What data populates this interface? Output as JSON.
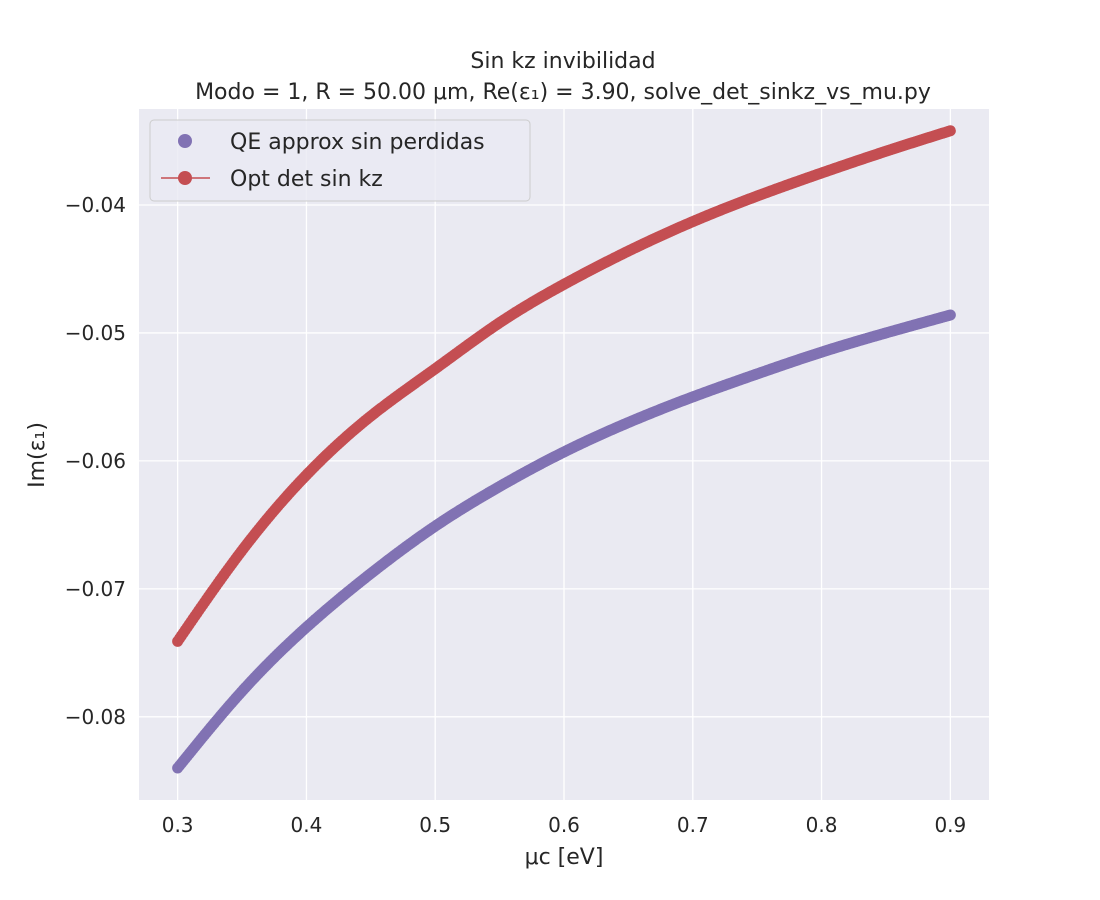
{
  "chart_data": {
    "type": "scatter",
    "title": "Sin kz invibilidad",
    "subtitle": "Modo = 1, R = 50.00 μm, Re(ε₁) = 3.90, solve_det_sinkz_vs_mu.py",
    "xlabel": "μc [eV]",
    "ylabel": "Im(ε₁)",
    "xlim": [
      0.27,
      0.93
    ],
    "ylim": [
      -0.0865,
      -0.0325
    ],
    "x_ticks": [
      0.3,
      0.4,
      0.5,
      0.6,
      0.7,
      0.8,
      0.9
    ],
    "x_tick_labels": [
      "0.3",
      "0.4",
      "0.5",
      "0.6",
      "0.7",
      "0.8",
      "0.9"
    ],
    "y_ticks": [
      -0.04,
      -0.05,
      -0.06,
      -0.07,
      -0.08
    ],
    "y_tick_labels": [
      "−0.04",
      "−0.05",
      "−0.06",
      "−0.07",
      "−0.08"
    ],
    "grid": true,
    "legend_position": "top-left",
    "series": [
      {
        "name": "QE approx sin perdidas",
        "color": "#8172b3",
        "marker": "circle",
        "line": false,
        "x": [
          0.3,
          0.35,
          0.4,
          0.45,
          0.5,
          0.55,
          0.6,
          0.65,
          0.7,
          0.75,
          0.8,
          0.85,
          0.9
        ],
        "y": [
          -0.084,
          -0.078,
          -0.073,
          -0.0688,
          -0.0651,
          -0.062,
          -0.0593,
          -0.057,
          -0.055,
          -0.0532,
          -0.0515,
          -0.05,
          -0.0486
        ]
      },
      {
        "name": "Opt det sin kz",
        "color": "#c44e52",
        "marker": "circle",
        "line": true,
        "x": [
          0.3,
          0.35,
          0.4,
          0.45,
          0.5,
          0.55,
          0.6,
          0.65,
          0.7,
          0.75,
          0.8,
          0.85,
          0.9
        ],
        "y": [
          -0.0741,
          -0.067,
          -0.0611,
          -0.0565,
          -0.0528,
          -0.0492,
          -0.0462,
          -0.0436,
          -0.0413,
          -0.0393,
          -0.0375,
          -0.0358,
          -0.0342
        ]
      }
    ]
  }
}
